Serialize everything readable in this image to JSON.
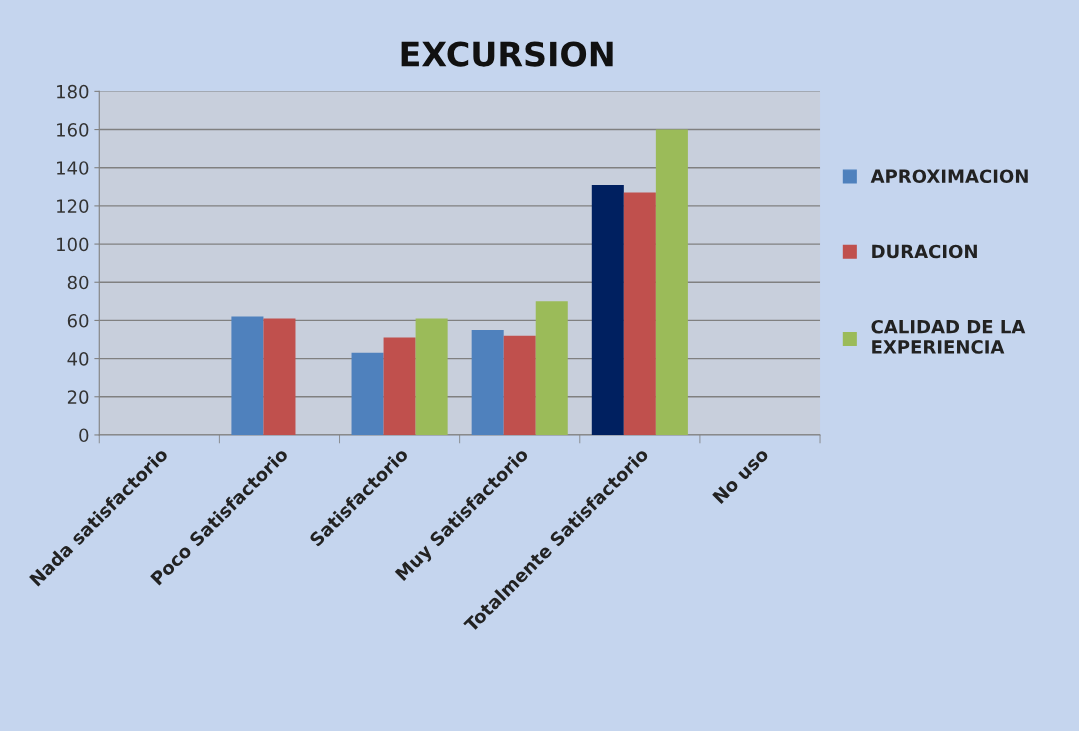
{
  "chart_data": {
    "type": "bar",
    "title": "EXCURSION",
    "categories": [
      "Nada satisfactorio",
      "Poco Satisfactorio",
      "Satisfactorio",
      "Muy Satisfactorio",
      "Totalmente Satisfactorio",
      "No uso"
    ],
    "series": [
      {
        "name": "APROXIMACION",
        "color": "#4f81bd",
        "colors": [
          "#4f81bd",
          "#4f81bd",
          "#4f81bd",
          "#4f81bd",
          "#002060",
          "#4f81bd"
        ],
        "values": [
          null,
          62,
          43,
          55,
          131,
          null
        ]
      },
      {
        "name": "DURACION",
        "color": "#c0504d",
        "values": [
          null,
          61,
          51,
          52,
          127,
          null
        ]
      },
      {
        "name": "CALIDAD DE LA\nEXPERIENCIA",
        "color": "#9bbb59",
        "values": [
          null,
          null,
          61,
          70,
          160,
          null
        ]
      }
    ],
    "ylim": [
      0,
      180
    ],
    "yticks": [
      0,
      20,
      40,
      60,
      80,
      100,
      120,
      140,
      160,
      180
    ],
    "grid": "y",
    "legend": "right"
  }
}
